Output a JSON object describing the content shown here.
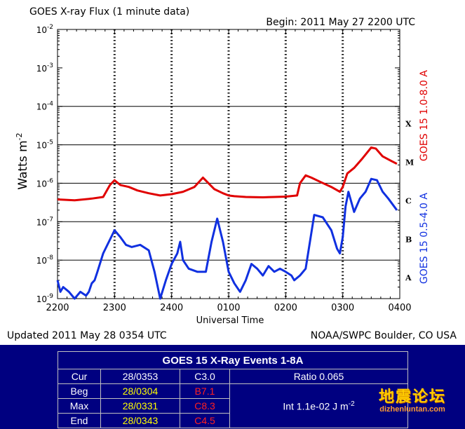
{
  "chart_data": {
    "type": "line",
    "title": "GOES X-ray Flux (1 minute data)",
    "begin_label": "Begin: 2011 May 27 2200 UTC",
    "xlabel": "Universal Time",
    "ylabel": "Watts m",
    "ylabel_sup": "-2",
    "x_ticks": [
      "2200",
      "2300",
      "2400",
      "0100",
      "0200",
      "0300",
      "0400"
    ],
    "x_range_hours": [
      0,
      6
    ],
    "y_scale": "log",
    "ylim": [
      1e-09,
      0.01
    ],
    "y_tick_exponents": [
      "-2",
      "-3",
      "-4",
      "-5",
      "-6",
      "-7",
      "-8",
      "-9"
    ],
    "flare_classes": [
      {
        "label": "X",
        "value": 0.0001
      },
      {
        "label": "M",
        "value": 1e-05
      },
      {
        "label": "C",
        "value": 1e-06
      },
      {
        "label": "B",
        "value": 1e-07
      },
      {
        "label": "A",
        "value": 1e-08
      }
    ],
    "series": [
      {
        "name": "GOES 15 1.0-8.0 A",
        "color": "#e00000",
        "x": [
          0.0,
          0.3,
          0.6,
          0.8,
          0.92,
          1.0,
          1.1,
          1.25,
          1.4,
          1.6,
          1.8,
          2.0,
          2.2,
          2.4,
          2.55,
          2.75,
          2.9,
          3.0,
          3.1,
          3.3,
          3.6,
          3.8,
          4.0,
          4.2,
          4.25,
          4.35,
          4.45,
          4.6,
          4.8,
          4.95,
          5.0,
          5.08,
          5.2,
          5.35,
          5.5,
          5.58,
          5.7,
          5.85,
          5.95
        ],
        "y": [
          3.8e-07,
          3.6e-07,
          4e-07,
          4.4e-07,
          9e-07,
          1.2e-06,
          9e-07,
          8e-07,
          6.5e-07,
          5.5e-07,
          4.8e-07,
          5.2e-07,
          6e-07,
          8e-07,
          1.4e-06,
          7e-07,
          5.5e-07,
          4.8e-07,
          4.6e-07,
          4.4e-07,
          4.3e-07,
          4.4e-07,
          4.5e-07,
          4.8e-07,
          1e-06,
          1.6e-06,
          1.4e-06,
          1.1e-06,
          8e-07,
          6e-07,
          8e-07,
          1.8e-06,
          2.5e-06,
          4.5e-06,
          8.5e-06,
          8e-06,
          5e-06,
          3.8e-06,
          3.2e-06
        ]
      },
      {
        "name": "GOES 15 0.5-4.0 A",
        "color": "#1030e0",
        "x": [
          0.0,
          0.05,
          0.1,
          0.2,
          0.3,
          0.4,
          0.5,
          0.55,
          0.6,
          0.65,
          0.7,
          0.8,
          0.9,
          1.0,
          1.1,
          1.2,
          1.3,
          1.45,
          1.6,
          1.7,
          1.8,
          1.9,
          2.0,
          2.1,
          2.15,
          2.2,
          2.3,
          2.45,
          2.6,
          2.7,
          2.8,
          2.9,
          3.0,
          3.1,
          3.2,
          3.3,
          3.4,
          3.5,
          3.6,
          3.7,
          3.8,
          3.9,
          4.0,
          4.1,
          4.15,
          4.25,
          4.35,
          4.5,
          4.65,
          4.8,
          4.9,
          4.95,
          5.0,
          5.05,
          5.1,
          5.2,
          5.3,
          5.4,
          5.5,
          5.6,
          5.7,
          5.8,
          5.95
        ],
        "y": [
          3e-09,
          1.5e-09,
          2e-09,
          1.5e-09,
          1e-09,
          1.5e-09,
          1.2e-09,
          1.5e-09,
          2.5e-09,
          3e-09,
          5e-09,
          1.5e-08,
          3e-08,
          6e-08,
          4e-08,
          2.5e-08,
          2.2e-08,
          2.5e-08,
          1.8e-08,
          5e-09,
          1e-09,
          3e-09,
          8e-09,
          1.5e-08,
          3e-08,
          1e-08,
          6e-09,
          5e-09,
          5e-09,
          3e-08,
          1.2e-07,
          3e-08,
          5e-09,
          2.5e-09,
          1.5e-09,
          3e-09,
          8e-09,
          6e-09,
          4e-09,
          7e-09,
          5e-09,
          6e-09,
          5e-09,
          4e-09,
          3e-09,
          4e-09,
          6e-09,
          1.5e-07,
          1.3e-07,
          6e-08,
          2e-08,
          1.5e-08,
          4e-08,
          2.5e-07,
          6e-07,
          1.8e-07,
          4e-07,
          6e-07,
          1.3e-06,
          1.2e-06,
          6e-07,
          4e-07,
          2e-07
        ]
      }
    ]
  },
  "footer": {
    "updated": "Updated 2011 May 28 0354 UTC",
    "credit": "NOAA/SWPC Boulder, CO USA"
  },
  "events_table": {
    "title": "GOES 15 X-Ray Events 1-8A",
    "rows": [
      {
        "label": "Cur",
        "time": "28/0353",
        "class": "C3.0"
      },
      {
        "label": "Beg",
        "time": "28/0304",
        "class": "B7.1"
      },
      {
        "label": "Max",
        "time": "28/0331",
        "class": "C8.3"
      },
      {
        "label": "End",
        "time": "28/0343",
        "class": "C4.5"
      }
    ],
    "ratio": "Ratio 0.065",
    "integral": "Int 1.1e-02 J m",
    "integral_sup": "-2",
    "colors": {
      "time": "#ffff00",
      "class": "#ff2020"
    }
  },
  "watermark": {
    "text": "地震论坛",
    "url": "dizhenluntan.com"
  }
}
